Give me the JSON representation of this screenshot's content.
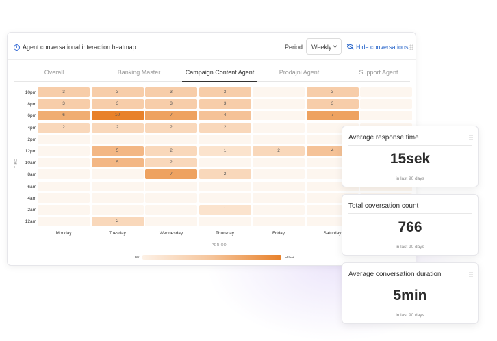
{
  "header": {
    "title": "Agent conversational interaction heatmap",
    "period_label": "Period",
    "period_value": "Weekly",
    "hide_label": "Hide conversations"
  },
  "tabs": [
    {
      "label": "Overall",
      "active": false
    },
    {
      "label": "Banking Master",
      "active": false
    },
    {
      "label": "Campaign Content Agent",
      "active": true
    },
    {
      "label": "Prodajni Agent",
      "active": false
    },
    {
      "label": "Support Agent",
      "active": false
    }
  ],
  "heatmap": {
    "y_axis_label": "TIME",
    "x_axis_label": "PERIOD",
    "rows": [
      "10pm",
      "8pm",
      "6pm",
      "4pm",
      "2pm",
      "12pm",
      "10am",
      "8am",
      "6am",
      "4am",
      "2am",
      "12am"
    ],
    "columns": [
      "Monday",
      "Tuesday",
      "Wednesday",
      "Thursday",
      "Friday",
      "Saturday",
      ""
    ],
    "values": [
      [
        3,
        3,
        3,
        3,
        null,
        3,
        null
      ],
      [
        3,
        3,
        3,
        3,
        null,
        3,
        null
      ],
      [
        6,
        10,
        7,
        4,
        null,
        7,
        null
      ],
      [
        2,
        2,
        2,
        2,
        null,
        null,
        null
      ],
      [
        null,
        null,
        null,
        null,
        null,
        null,
        null
      ],
      [
        null,
        5,
        2,
        1,
        2,
        4,
        null
      ],
      [
        null,
        5,
        2,
        null,
        null,
        null,
        null
      ],
      [
        null,
        null,
        7,
        2,
        null,
        null,
        null
      ],
      [
        null,
        null,
        null,
        null,
        null,
        null,
        null
      ],
      [
        null,
        null,
        null,
        null,
        null,
        null,
        null
      ],
      [
        null,
        null,
        null,
        1,
        null,
        null,
        null
      ],
      [
        null,
        2,
        null,
        null,
        null,
        null,
        null
      ]
    ],
    "max_value": 10,
    "legend_low": "LOW",
    "legend_high": "HIGH",
    "colors": {
      "empty": "#fdf6ef",
      "low": "#fbe3cd",
      "high": "#e8812a"
    }
  },
  "stats": [
    {
      "title": "Average response time",
      "value": "15sek",
      "sub": "in last 90 days"
    },
    {
      "title": "Total coversation count",
      "value": "766",
      "sub": "in last 90 days"
    },
    {
      "title": "Average conversation duration",
      "value": "5min",
      "sub": "in last 90 days"
    }
  ],
  "icons": {
    "info": "info-icon",
    "hide": "eye-slash-icon",
    "drag": "drag-handle-icon",
    "dropdown": "chevron-down-icon"
  }
}
